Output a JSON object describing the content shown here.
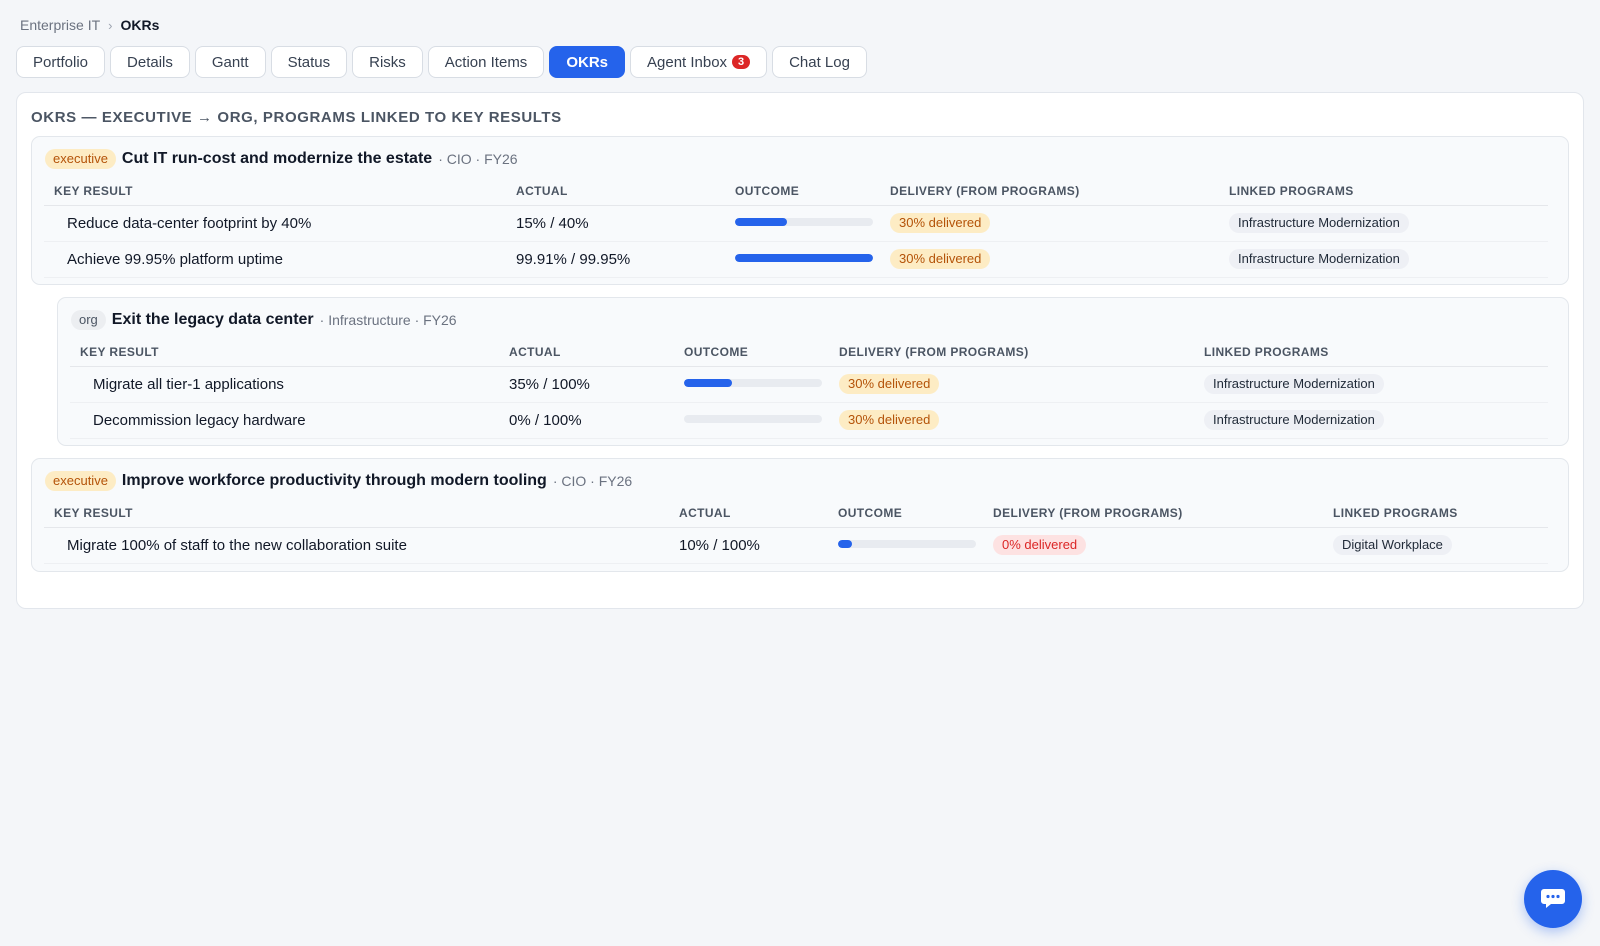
{
  "breadcrumb": {
    "parent": "Enterprise IT",
    "separator": "›",
    "current": "OKRs"
  },
  "tabs": [
    {
      "label": "Portfolio",
      "active": false
    },
    {
      "label": "Details",
      "active": false
    },
    {
      "label": "Gantt",
      "active": false
    },
    {
      "label": "Status",
      "active": false
    },
    {
      "label": "Risks",
      "active": false
    },
    {
      "label": "Action Items",
      "active": false
    },
    {
      "label": "OKRs",
      "active": true
    },
    {
      "label": "Agent Inbox",
      "active": false,
      "badge": "3"
    },
    {
      "label": "Chat Log",
      "active": false
    }
  ],
  "panel": {
    "title": "OKRs — executive → org, programs linked to key results",
    "columns": {
      "key_result": "Key Result",
      "actual": "Actual",
      "outcome": "Outcome",
      "delivery": "Delivery (from programs)",
      "linked": "Linked Programs"
    },
    "objectives": [
      {
        "level": "executive",
        "title": "Cut IT run-cost and modernize the estate",
        "meta": "· CIO · FY26",
        "key_results": [
          {
            "name": "Reduce data-center footprint by 40%",
            "actual": "15% / 40%",
            "progress": 0.375,
            "delivery": "30% delivered",
            "delivery_status": "warn",
            "program": "Infrastructure Modernization"
          },
          {
            "name": "Achieve 99.95% platform uptime",
            "actual": "99.91% / 99.95%",
            "progress": 0.9996,
            "delivery": "30% delivered",
            "delivery_status": "warn",
            "program": "Infrastructure Modernization"
          }
        ]
      },
      {
        "level": "org",
        "title": "Exit the legacy data center",
        "meta": "· Infrastructure · FY26",
        "key_results": [
          {
            "name": "Migrate all tier-1 applications",
            "actual": "35% / 100%",
            "progress": 0.35,
            "delivery": "30% delivered",
            "delivery_status": "warn",
            "program": "Infrastructure Modernization"
          },
          {
            "name": "Decommission legacy hardware",
            "actual": "0% / 100%",
            "progress": 0,
            "delivery": "30% delivered",
            "delivery_status": "warn",
            "program": "Infrastructure Modernization"
          }
        ]
      },
      {
        "level": "executive",
        "title": "Improve workforce productivity through modern tooling",
        "meta": "· CIO · FY26",
        "key_results": [
          {
            "name": "Migrate 100% of staff to the new collaboration suite",
            "actual": "10% / 100%",
            "progress": 0.1,
            "delivery": "0% delivered",
            "delivery_status": "bad",
            "program": "Digital Workplace"
          }
        ]
      }
    ]
  },
  "chat_button": {
    "icon": "chat-bubble-icon"
  },
  "colors": {
    "accent": "#2563eb",
    "warn_bg": "#fdecc4",
    "warn_text": "#b45309",
    "bad_bg": "#fde2e2",
    "bad_text": "#dc2626",
    "badge": "#dc2626"
  }
}
